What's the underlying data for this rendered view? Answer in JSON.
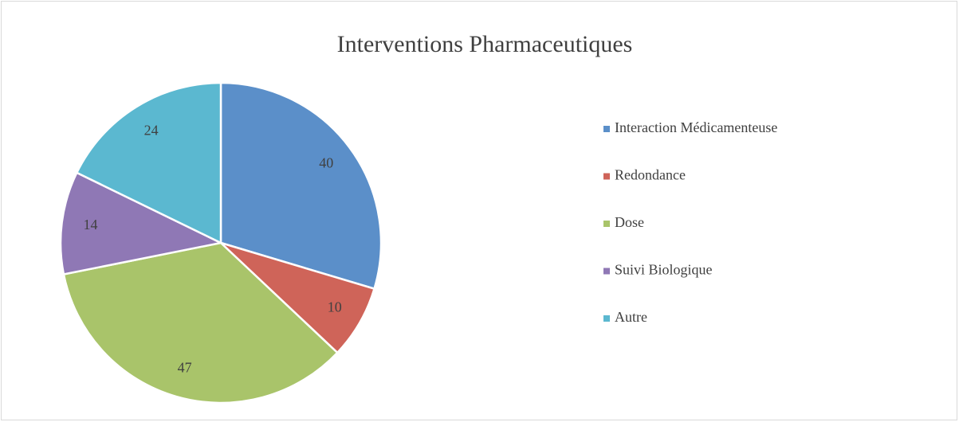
{
  "chart_data": {
    "type": "pie",
    "title": "Interventions Pharmaceutiques",
    "categories": [
      "Interaction Médicamenteuse",
      "Redondance",
      "Dose",
      "Suivi Biologique",
      "Autre"
    ],
    "values": [
      40,
      10,
      47,
      14,
      24
    ],
    "colors": [
      "#5b8fc9",
      "#cf6459",
      "#a9c46a",
      "#8f78b5",
      "#5bb8d0"
    ],
    "legend": "right"
  }
}
